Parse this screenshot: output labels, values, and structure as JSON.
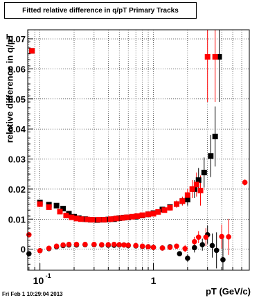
{
  "title": "Fitted relative difference in q/pT  Primary Tracks",
  "footer": "Fri Feb  1 10:29:04 2013",
  "chart_data": {
    "type": "scatter",
    "title": "Fitted relative difference in q/pT  Primary Tracks",
    "xlabel": "pT (GeV/c)",
    "ylabel": "relative difference in q/pT",
    "xscale": "log",
    "xlim": [
      0.078,
      7.0
    ],
    "ylim": [
      -0.007,
      0.073
    ],
    "grid": true,
    "x_ticklabels": [
      "10^-1",
      "1"
    ],
    "y_ticks": [
      0,
      0.01,
      0.02,
      0.03,
      0.04,
      0.05,
      0.06,
      0.07
    ],
    "y_ticklabels": [
      "0",
      "0.01",
      "0.02",
      "0.03",
      "0.04",
      "0.05",
      "0.06",
      "0.07"
    ],
    "series": [
      {
        "marker": "square",
        "color": "#000000",
        "points": [
          [
            0.085,
            0.066
          ],
          [
            0.1,
            0.0155
          ],
          [
            0.12,
            0.0148
          ],
          [
            0.14,
            0.0145
          ],
          [
            0.16,
            0.0135
          ],
          [
            0.18,
            0.0118
          ],
          [
            0.2,
            0.0108
          ],
          [
            0.22,
            0.0103
          ],
          [
            0.25,
            0.01
          ],
          [
            0.28,
            0.0098
          ],
          [
            0.32,
            0.0097
          ],
          [
            0.36,
            0.0098
          ],
          [
            0.4,
            0.0099
          ],
          [
            0.45,
            0.01
          ],
          [
            0.5,
            0.0103
          ],
          [
            0.55,
            0.0105
          ],
          [
            0.6,
            0.0106
          ],
          [
            0.7,
            0.0108
          ],
          [
            0.8,
            0.0112
          ],
          [
            0.9,
            0.0116
          ],
          [
            1.0,
            0.012
          ],
          [
            1.2,
            0.0132
          ],
          [
            1.4,
            0.014
          ],
          [
            1.6,
            0.015
          ],
          [
            1.8,
            0.016
          ],
          [
            2.0,
            0.0165
          ],
          [
            2.3,
            0.02
          ],
          [
            2.5,
            0.023
          ],
          [
            2.8,
            0.0255
          ],
          [
            3.2,
            0.031
          ],
          [
            3.5,
            0.0375
          ],
          [
            3.8,
            0.064
          ]
        ],
        "errors": [
          0.0006,
          0.0006,
          0.0005,
          0.0005,
          0.0004,
          0.0004,
          0.0003,
          0.0003,
          0.0003,
          0.0003,
          0.0003,
          0.0003,
          0.0003,
          0.0003,
          0.0003,
          0.0003,
          0.0003,
          0.0004,
          0.0004,
          0.0005,
          0.0005,
          0.0006,
          0.0008,
          0.001,
          0.0012,
          0.002,
          0.003,
          0.004,
          0.005,
          0.007,
          0.01,
          0.015
        ]
      },
      {
        "marker": "square",
        "color": "#ff0000",
        "points": [
          [
            0.085,
            0.066
          ],
          [
            0.1,
            0.015
          ],
          [
            0.12,
            0.014
          ],
          [
            0.15,
            0.0125
          ],
          [
            0.17,
            0.0112
          ],
          [
            0.19,
            0.0106
          ],
          [
            0.21,
            0.0102
          ],
          [
            0.23,
            0.01
          ],
          [
            0.26,
            0.0099
          ],
          [
            0.29,
            0.0098
          ],
          [
            0.33,
            0.0098
          ],
          [
            0.37,
            0.0098
          ],
          [
            0.42,
            0.01
          ],
          [
            0.47,
            0.0102
          ],
          [
            0.53,
            0.0104
          ],
          [
            0.58,
            0.0106
          ],
          [
            0.65,
            0.0108
          ],
          [
            0.72,
            0.011
          ],
          [
            0.8,
            0.0113
          ],
          [
            0.9,
            0.0116
          ],
          [
            1.0,
            0.0118
          ],
          [
            1.1,
            0.0124
          ],
          [
            1.25,
            0.013
          ],
          [
            1.4,
            0.0138
          ],
          [
            1.6,
            0.015
          ],
          [
            1.8,
            0.016
          ],
          [
            2.0,
            0.018
          ],
          [
            2.2,
            0.02
          ],
          [
            2.4,
            0.0215
          ],
          [
            2.6,
            0.0195
          ],
          [
            3.0,
            0.064
          ],
          [
            3.5,
            0.064
          ]
        ],
        "errors": [
          0.0006,
          0.0006,
          0.0005,
          0.0005,
          0.0004,
          0.0004,
          0.0003,
          0.0003,
          0.0003,
          0.0003,
          0.0003,
          0.0003,
          0.0003,
          0.0003,
          0.0003,
          0.0003,
          0.0003,
          0.0004,
          0.0004,
          0.0005,
          0.0005,
          0.0006,
          0.0008,
          0.001,
          0.0012,
          0.0015,
          0.002,
          0.003,
          0.004,
          0.005,
          0.015,
          0.015
        ]
      },
      {
        "marker": "circle",
        "color": "#000000",
        "points": [
          [
            0.08,
            -0.0015
          ],
          [
            0.1,
            -0.0005
          ],
          [
            0.12,
            0.0002
          ],
          [
            0.14,
            0.0008
          ],
          [
            0.16,
            0.0012
          ],
          [
            0.18,
            0.0014
          ],
          [
            0.21,
            0.0014
          ],
          [
            0.25,
            0.0015
          ],
          [
            0.3,
            0.0015
          ],
          [
            0.35,
            0.0014
          ],
          [
            0.4,
            0.0013
          ],
          [
            0.45,
            0.0013
          ],
          [
            0.5,
            0.0014
          ],
          [
            0.55,
            0.0014
          ],
          [
            0.6,
            0.0012
          ],
          [
            0.7,
            0.0011
          ],
          [
            0.8,
            0.0009
          ],
          [
            0.9,
            0.0008
          ],
          [
            1.0,
            0.0006
          ],
          [
            1.2,
            0.0004
          ],
          [
            1.4,
            0.0008
          ],
          [
            1.7,
            -0.0015
          ],
          [
            2.0,
            -0.003
          ],
          [
            2.3,
            0.0005
          ],
          [
            2.7,
            0.0015
          ],
          [
            3.0,
            0.0048
          ],
          [
            3.3,
            0.0012
          ],
          [
            3.6,
            -0.0004
          ],
          [
            4.1,
            -0.0035
          ]
        ],
        "errors": [
          0.0004,
          0.0004,
          0.0003,
          0.0003,
          0.0003,
          0.0003,
          0.0002,
          0.0002,
          0.0002,
          0.0002,
          0.0002,
          0.0002,
          0.0002,
          0.0002,
          0.0002,
          0.0002,
          0.0003,
          0.0003,
          0.0003,
          0.0004,
          0.0006,
          0.0008,
          0.0012,
          0.0016,
          0.002,
          0.003,
          0.004,
          0.006,
          0.008
        ]
      },
      {
        "marker": "circle",
        "color": "#ff0000",
        "points": [
          [
            0.08,
            0.0048
          ],
          [
            0.1,
            -0.0005
          ],
          [
            0.12,
            0.0003
          ],
          [
            0.14,
            0.001
          ],
          [
            0.16,
            0.0014
          ],
          [
            0.18,
            0.0016
          ],
          [
            0.21,
            0.0016
          ],
          [
            0.25,
            0.0016
          ],
          [
            0.3,
            0.0016
          ],
          [
            0.35,
            0.0015
          ],
          [
            0.4,
            0.0015
          ],
          [
            0.45,
            0.0016
          ],
          [
            0.5,
            0.0015
          ],
          [
            0.55,
            0.0014
          ],
          [
            0.6,
            0.0013
          ],
          [
            0.7,
            0.0012
          ],
          [
            0.8,
            0.001
          ],
          [
            0.9,
            0.0008
          ],
          [
            1.0,
            0.0006
          ],
          [
            1.2,
            0.0004
          ],
          [
            1.4,
            0.0006
          ],
          [
            1.6,
            0.001
          ],
          [
            1.9,
            0.0002
          ],
          [
            2.3,
            0.0025
          ],
          [
            2.5,
            0.004
          ],
          [
            2.9,
            0.004
          ],
          [
            4.0,
            0.0042
          ],
          [
            4.6,
            0.0041
          ],
          [
            6.4,
            0.0222
          ]
        ],
        "errors": [
          0.0004,
          0.0004,
          0.0003,
          0.0003,
          0.0003,
          0.0003,
          0.0002,
          0.0002,
          0.0002,
          0.0002,
          0.0002,
          0.0002,
          0.0002,
          0.0002,
          0.0002,
          0.0002,
          0.0003,
          0.0003,
          0.0003,
          0.0004,
          0.0006,
          0.0008,
          0.0012,
          0.0016,
          0.002,
          0.003,
          0.004,
          0.006,
          0.001
        ]
      }
    ]
  }
}
